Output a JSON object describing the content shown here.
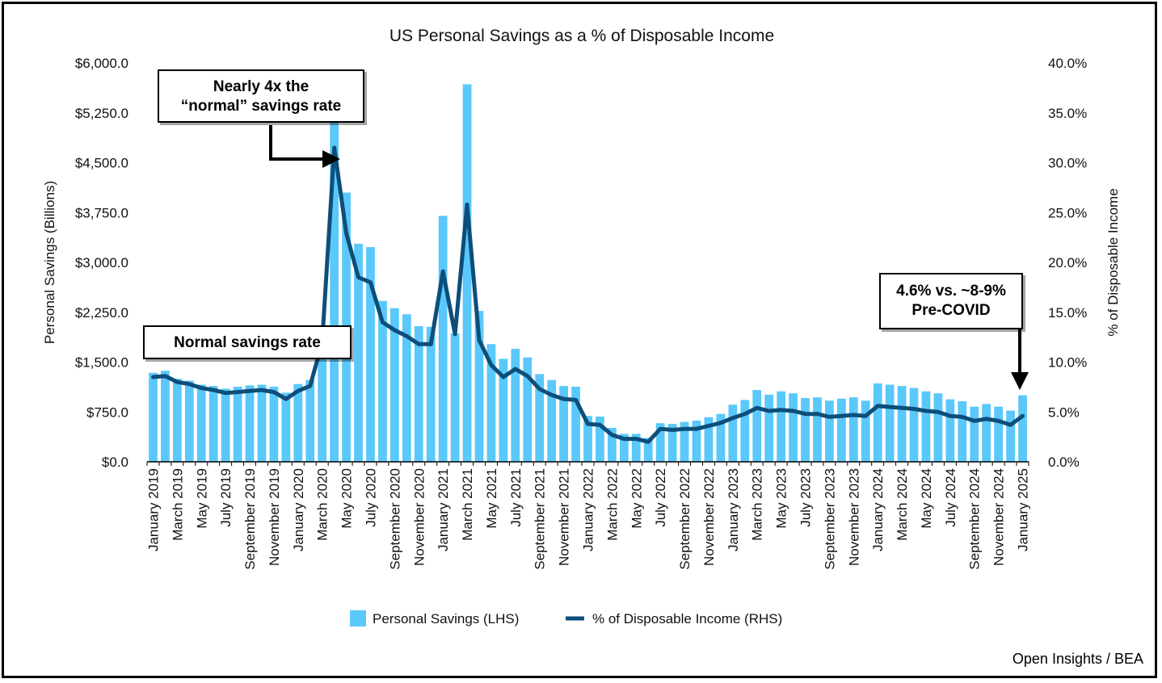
{
  "chart_data": {
    "type": "bar+line",
    "title": "US Personal Savings as a % of Disposable Income",
    "ylabel_left": "Personal Savings (Billions)",
    "ylabel_right": "% of Disposable Income",
    "ylim_left": [
      0,
      6000
    ],
    "ylim_right": [
      0,
      40
    ],
    "left_ticks": [
      "$0.0",
      "$750.0",
      "$1,500.0",
      "$2,250.0",
      "$3,000.0",
      "$3,750.0",
      "$4,500.0",
      "$5,250.0",
      "$6,000.0"
    ],
    "right_ticks": [
      "0.0%",
      "5.0%",
      "10.0%",
      "15.0%",
      "20.0%",
      "25.0%",
      "30.0%",
      "35.0%",
      "40.0%"
    ],
    "categories": [
      "January 2019",
      "February 2019",
      "March 2019",
      "April 2019",
      "May 2019",
      "June 2019",
      "July 2019",
      "August 2019",
      "September 2019",
      "October 2019",
      "November 2019",
      "December 2019",
      "January 2020",
      "February 2020",
      "March 2020",
      "April 2020",
      "May 2020",
      "June 2020",
      "July 2020",
      "August 2020",
      "September 2020",
      "October 2020",
      "November 2020",
      "December 2020",
      "January 2021",
      "February 2021",
      "March 2021",
      "April 2021",
      "May 2021",
      "June 2021",
      "July 2021",
      "August 2021",
      "September 2021",
      "October 2021",
      "November 2021",
      "December 2021",
      "January 2022",
      "February 2022",
      "March 2022",
      "April 2022",
      "May 2022",
      "June 2022",
      "July 2022",
      "August 2022",
      "September 2022",
      "October 2022",
      "November 2022",
      "December 2022",
      "January 2023",
      "February 2023",
      "March 2023",
      "April 2023",
      "May 2023",
      "June 2023",
      "July 2023",
      "August 2023",
      "September 2023",
      "October 2023",
      "November 2023",
      "December 2023",
      "January 2024",
      "February 2024",
      "March 2024",
      "April 2024",
      "May 2024",
      "June 2024",
      "July 2024",
      "August 2024",
      "September 2024",
      "October 2024",
      "November 2024",
      "December 2024",
      "January 2025"
    ],
    "x_tick_labels": [
      "January 2019",
      "March 2019",
      "May 2019",
      "July 2019",
      "September 2019",
      "November 2019",
      "January 2020",
      "March 2020",
      "May 2020",
      "July 2020",
      "September 2020",
      "November 2020",
      "January 2021",
      "March 2021",
      "May 2021",
      "July 2021",
      "September 2021",
      "November 2021",
      "January 2022",
      "March 2022",
      "May 2022",
      "July 2022",
      "September 2022",
      "November 2022",
      "January 2023",
      "March 2023",
      "May 2023",
      "July 2023",
      "September 2023",
      "November 2023",
      "January 2024",
      "March 2024",
      "May 2024",
      "July 2024",
      "September 2024",
      "November 2024",
      "January 2025"
    ],
    "series": [
      {
        "name": "Personal Savings (LHS)",
        "axis": "left",
        "type": "bar",
        "color": "#5ac8fa",
        "values": [
          1340,
          1370,
          1250,
          1220,
          1160,
          1140,
          1100,
          1130,
          1150,
          1160,
          1130,
          1040,
          1170,
          1230,
          1990,
          5270,
          4050,
          3280,
          3230,
          2420,
          2310,
          2220,
          2040,
          2030,
          3700,
          1930,
          5680,
          2270,
          1770,
          1550,
          1700,
          1570,
          1320,
          1230,
          1140,
          1130,
          690,
          680,
          510,
          420,
          420,
          360,
          580,
          570,
          600,
          620,
          670,
          720,
          860,
          930,
          1080,
          1010,
          1060,
          1030,
          960,
          970,
          920,
          950,
          970,
          920,
          1180,
          1160,
          1140,
          1110,
          1060,
          1030,
          940,
          910,
          830,
          870,
          830,
          770,
          1000
        ]
      },
      {
        "name": "% of Disposable Income (RHS)",
        "axis": "right",
        "type": "line",
        "color": "#0d4e7a",
        "values": [
          8.5,
          8.6,
          8.0,
          7.8,
          7.4,
          7.2,
          6.9,
          7.0,
          7.1,
          7.2,
          7.0,
          6.3,
          7.1,
          7.6,
          12.0,
          31.5,
          22.9,
          18.5,
          18.0,
          14.0,
          13.2,
          12.6,
          11.8,
          11.8,
          19.1,
          12.8,
          25.8,
          12.2,
          9.7,
          8.5,
          9.3,
          8.6,
          7.3,
          6.7,
          6.3,
          6.2,
          3.8,
          3.7,
          2.7,
          2.3,
          2.3,
          2.0,
          3.3,
          3.2,
          3.3,
          3.3,
          3.6,
          3.9,
          4.4,
          4.8,
          5.4,
          5.1,
          5.2,
          5.1,
          4.8,
          4.8,
          4.5,
          4.6,
          4.7,
          4.6,
          5.6,
          5.5,
          5.4,
          5.3,
          5.1,
          5.0,
          4.6,
          4.5,
          4.1,
          4.3,
          4.1,
          3.7,
          4.6
        ]
      }
    ],
    "legend_position": "bottom",
    "grid": false
  },
  "callouts": {
    "peak_line1": "Nearly 4x the",
    "peak_line2": "“normal” savings rate",
    "normal": "Normal savings rate",
    "latest_line1": "4.6% vs. ~8-9%",
    "latest_line2": "Pre-COVID"
  },
  "source": "Open Insights / BEA"
}
